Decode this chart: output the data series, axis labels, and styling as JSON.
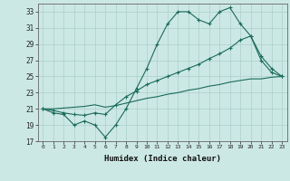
{
  "xlabel": "Humidex (Indice chaleur)",
  "bg_color": "#cce8e4",
  "line_color": "#1a6b5a",
  "grid_color": "#aacfca",
  "xlim": [
    -0.5,
    23.5
  ],
  "ylim": [
    17,
    34
  ],
  "yticks": [
    17,
    19,
    21,
    23,
    25,
    27,
    29,
    31,
    33
  ],
  "xticks": [
    0,
    1,
    2,
    3,
    4,
    5,
    6,
    7,
    8,
    9,
    10,
    11,
    12,
    13,
    14,
    15,
    16,
    17,
    18,
    19,
    20,
    21,
    22,
    23
  ],
  "line1_x": [
    0,
    1,
    2,
    3,
    4,
    5,
    6,
    7,
    8,
    9,
    10,
    11,
    12,
    13,
    14,
    15,
    16,
    17,
    18,
    19,
    20,
    21,
    22,
    23
  ],
  "line1_y": [
    21.0,
    20.5,
    20.3,
    19.0,
    19.5,
    19.0,
    17.5,
    19.0,
    21.0,
    23.5,
    26.0,
    29.0,
    31.5,
    33.0,
    33.0,
    32.0,
    31.5,
    33.0,
    33.5,
    31.5,
    30.0,
    27.0,
    25.5,
    25.0
  ],
  "line2_x": [
    0,
    1,
    2,
    3,
    4,
    5,
    6,
    7,
    8,
    9,
    10,
    11,
    12,
    13,
    14,
    15,
    16,
    17,
    18,
    19,
    20,
    21,
    22,
    23
  ],
  "line2_y": [
    21.0,
    20.8,
    20.5,
    20.3,
    20.2,
    20.5,
    20.3,
    21.5,
    22.5,
    23.2,
    24.0,
    24.5,
    25.0,
    25.5,
    26.0,
    26.5,
    27.2,
    27.8,
    28.5,
    29.5,
    30.0,
    27.5,
    26.0,
    25.0
  ],
  "line3_x": [
    0,
    1,
    2,
    3,
    4,
    5,
    6,
    7,
    8,
    9,
    10,
    11,
    12,
    13,
    14,
    15,
    16,
    17,
    18,
    19,
    20,
    21,
    22,
    23
  ],
  "line3_y": [
    21.0,
    21.0,
    21.1,
    21.2,
    21.3,
    21.5,
    21.2,
    21.4,
    21.7,
    22.0,
    22.3,
    22.5,
    22.8,
    23.0,
    23.3,
    23.5,
    23.8,
    24.0,
    24.3,
    24.5,
    24.7,
    24.7,
    24.9,
    25.0
  ]
}
